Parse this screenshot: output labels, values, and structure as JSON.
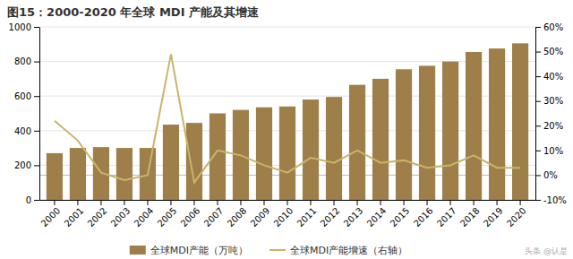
{
  "chart_data": {
    "type": "bar",
    "title": "图15：2000-2020 年全球 MDI 产能及其增速",
    "categories": [
      "2000",
      "2001",
      "2002",
      "2003",
      "2004",
      "2005",
      "2006",
      "2007",
      "2008",
      "2009",
      "2010",
      "2011",
      "2012",
      "2013",
      "2014",
      "2015",
      "2016",
      "2017",
      "2018",
      "2019",
      "2020"
    ],
    "series": [
      {
        "name": "全球MDI产能（万吨）",
        "type": "bar",
        "color": "#9e7f4a",
        "values": [
          270,
          300,
          305,
          300,
          300,
          435,
          445,
          500,
          520,
          535,
          540,
          580,
          595,
          665,
          700,
          755,
          775,
          800,
          855,
          875,
          905
        ]
      },
      {
        "name": "全球MDI产能增速（右轴）",
        "type": "line",
        "color": "#c8b46a",
        "axis": "y2",
        "values": [
          0.22,
          0.14,
          0.01,
          -0.02,
          0.0,
          0.49,
          -0.03,
          0.1,
          0.08,
          0.04,
          0.01,
          0.07,
          0.05,
          0.1,
          0.05,
          0.06,
          0.03,
          0.04,
          0.08,
          0.03,
          0.03
        ]
      }
    ],
    "ylim": [
      0,
      1000
    ],
    "yticks": [
      0,
      200,
      400,
      600,
      800,
      1000
    ],
    "y2lim": [
      -0.1,
      0.6
    ],
    "y2ticks": [
      {
        "value": -0.1,
        "label": "-10%"
      },
      {
        "value": 0.0,
        "label": "0%"
      },
      {
        "value": 0.1,
        "label": "10%"
      },
      {
        "value": 0.2,
        "label": "20%"
      },
      {
        "value": 0.3,
        "label": "30%"
      },
      {
        "value": 0.4,
        "label": "40%"
      },
      {
        "value": 0.5,
        "label": "50%"
      },
      {
        "value": 0.6,
        "label": "60%"
      }
    ],
    "grid": true,
    "legend": "bottom",
    "annotations": [
      "头条 @认是"
    ]
  }
}
